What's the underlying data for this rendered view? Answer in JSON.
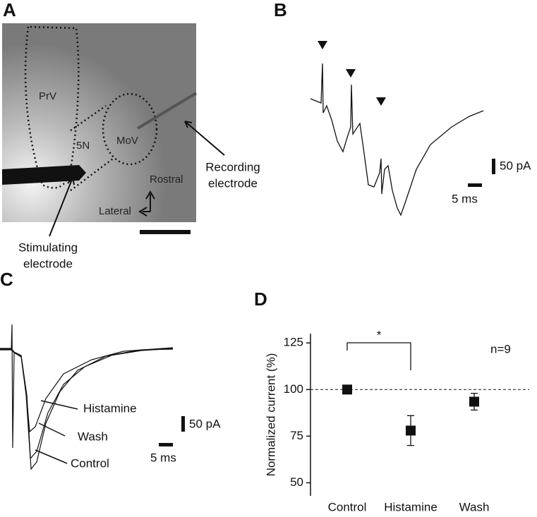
{
  "panels": [
    "A",
    "B",
    "C",
    "D"
  ],
  "panel_a": {
    "regions": [
      "PrV",
      "5N",
      "MoV"
    ],
    "directions": [
      "Rostral",
      "Lateral"
    ],
    "recording": [
      "Recording",
      "electrode"
    ],
    "stimulating": [
      "Stimulating",
      "electrode"
    ]
  },
  "panel_b": {
    "scale_current": "50 pA",
    "scale_time": "5 ms"
  },
  "panel_c": {
    "traces": [
      "Histamine",
      "Wash",
      "Control"
    ],
    "scale_current": "50 pA",
    "scale_time": "5 ms"
  },
  "chart_data": {
    "type": "errorscatter",
    "ylabel": "Normalized current (%)",
    "categories": [
      "Control",
      "Histamine",
      "Wash"
    ],
    "values": [
      100,
      78,
      93.5
    ],
    "errors": [
      1,
      8,
      4.5
    ],
    "color": "#111111",
    "ylim": [
      43,
      130
    ],
    "yticks": [
      50,
      75,
      100,
      125
    ],
    "reference_line": 100,
    "annotations": [
      "*",
      "n=9"
    ]
  }
}
